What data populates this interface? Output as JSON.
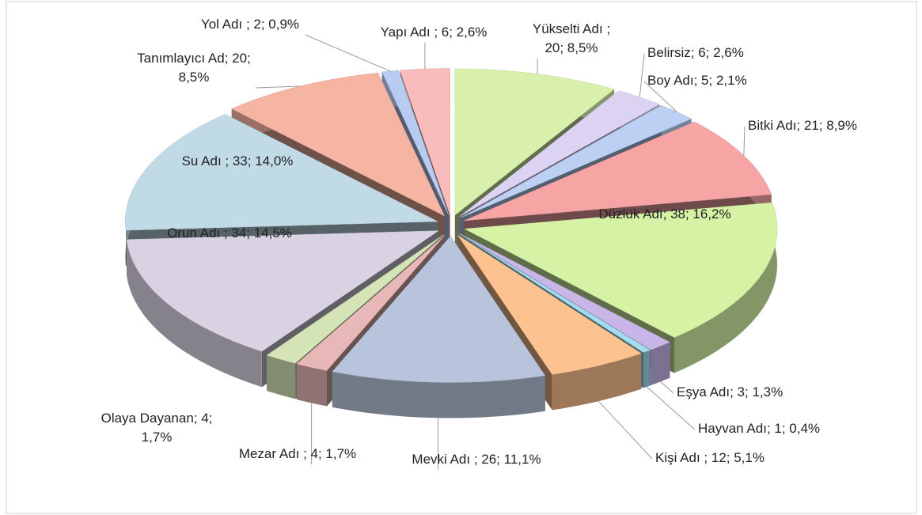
{
  "chart_data": {
    "type": "pie3d",
    "values": [
      20,
      6,
      5,
      21,
      38,
      3,
      1,
      12,
      26,
      4,
      4,
      34,
      33,
      20,
      2,
      6
    ],
    "value_labels": [
      "Yükselti Adı ;\n20; 8,5%",
      "Belirsiz; 6; 2,6%",
      "Boy Adı; 5; 2,1%",
      "Bitki Adı; 21; 8,9%",
      "Düzlük Adı; 38; 16,2%",
      "Eşya Adı; 3; 1,3%",
      "Hayvan Adı; 1; 0,4%",
      "Kişi Adı ; 12; 5,1%",
      "Mevki Adı ; 26; 11,1%",
      "Mezar Adı ; 4; 1,7%",
      "Olaya Dayanan; 4;\n1,7%",
      "Orun Adı ; 34; 14,5%",
      "Su Adı ; 33; 14,0%",
      "Tanımlayıcı Ad; 20;\n8,5%",
      "Yol Adı ; 2; 0,9%",
      "Yapı Adı ; 6; 2,6%"
    ],
    "colors": [
      "#d8f0ac",
      "#dcd2f2",
      "#bcd0f4",
      "#f6a4a4",
      "#d6f2a4",
      "#c8b6e8",
      "#a2dcee",
      "#fcc290",
      "#b8c4dc",
      "#e8b8b8",
      "#d4e4b6",
      "#d8d2e2",
      "#c0dae6",
      "#f6b4a2",
      "#b8ccf2",
      "#f8bcbc"
    ]
  }
}
